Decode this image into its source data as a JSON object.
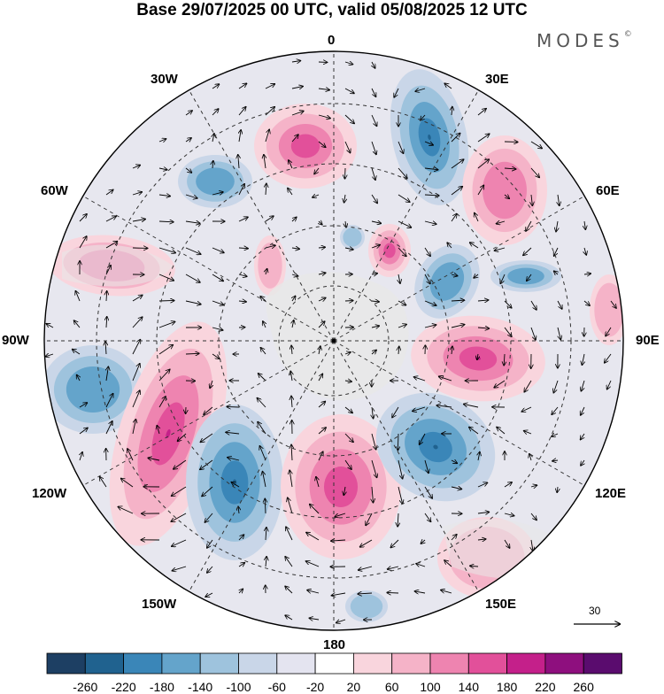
{
  "title": "Base 29/07/2025 00 UTC, valid 05/08/2025 12 UTC",
  "brand": "MODES",
  "brand_mark": "©",
  "lon_labels": {
    "top": "0",
    "upper_left": "30W",
    "upper_right": "30E",
    "left_upper": "60W",
    "right_upper": "60E",
    "left": "90W",
    "right": "90E",
    "left_lower": "120W",
    "right_lower": "120E",
    "lower_left": "150W",
    "lower_right": "150E",
    "bottom": "180"
  },
  "reference_vector": {
    "value": "30"
  },
  "colorbar": {
    "ticks": [
      "-260",
      "-220",
      "-180",
      "-140",
      "-100",
      "-60",
      "-20",
      "20",
      "60",
      "100",
      "140",
      "180",
      "220",
      "260"
    ],
    "colors": [
      "#1d3f63",
      "#20628f",
      "#3a86b8",
      "#64a4cb",
      "#9ec3dd",
      "#c9d6e8",
      "#e4e4f0",
      "#ffffff",
      "#f9d5dd",
      "#f5b3c8",
      "#ee84b0",
      "#e2509a",
      "#c4208a",
      "#8e0f7e",
      "#5a0c6e"
    ]
  },
  "field_colors": {
    "land": "#e7e7e7",
    "grid": "#333333",
    "contour": "#000000"
  }
}
